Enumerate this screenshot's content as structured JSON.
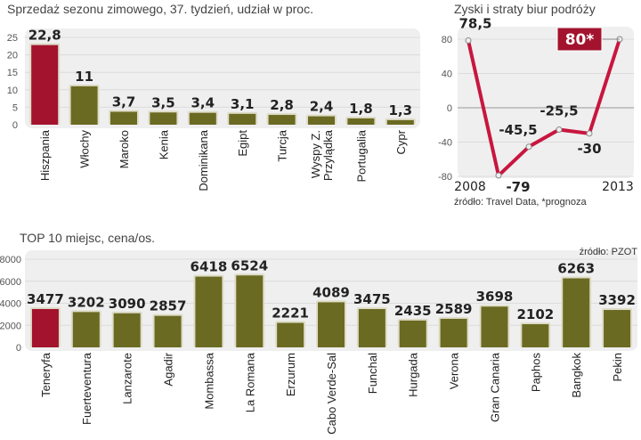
{
  "chart_data": [
    {
      "type": "bar",
      "title": "Sprzedaż sezonu zimowego, 37. tydzień, udział w proc.",
      "categories": [
        "Hiszpania",
        "Włochy",
        "Maroko",
        "Kenia",
        "Dominikana",
        "Egipt",
        "Turcja",
        "Wyspy Z. Przylądka",
        "Portugalia",
        "Cypr"
      ],
      "values": [
        22.8,
        11,
        3.7,
        3.5,
        3.4,
        3.1,
        2.8,
        2.4,
        1.8,
        1.3
      ],
      "value_labels": [
        "22,8",
        "11",
        "3,7",
        "3,5",
        "3,4",
        "3,1",
        "2,8",
        "2,4",
        "1,8",
        "1,3"
      ],
      "highlight_index": 0,
      "yticks": [
        0,
        5,
        10,
        15,
        20,
        25
      ],
      "ylim": [
        0,
        25
      ],
      "grid": true
    },
    {
      "type": "line",
      "title": "Zyski i straty biur podróży",
      "x": [
        2008,
        2009,
        2010,
        2011,
        2012,
        2013
      ],
      "x_tick_labels": [
        "2008",
        "2013"
      ],
      "values": [
        78.5,
        -79,
        -45.5,
        -25.5,
        -30,
        80
      ],
      "value_labels": [
        "78,5",
        "-79",
        "-45,5",
        "-25,5",
        "-30",
        "80*"
      ],
      "highlight_index": 5,
      "yticks": [
        -80,
        -40,
        0,
        40,
        80
      ],
      "ylim": [
        -80,
        80
      ],
      "source": "źródło: Travel Data, *prognoza",
      "grid": true
    },
    {
      "type": "bar",
      "title": "TOP 10 miejsc, cena/os.",
      "source": "źródło: PZOT",
      "categories": [
        "Teneryfa",
        "Fuerteventura",
        "Lanzarote",
        "Agadir",
        "Mombassa",
        "La Romana",
        "Erzurum",
        "Cabo Verde-Sal",
        "Funchal",
        "Hurgada",
        "Verona",
        "Gran Canaria",
        "Paphos",
        "Bangkok",
        "Pekin"
      ],
      "values": [
        3477,
        3202,
        3090,
        2857,
        6418,
        6524,
        2221,
        4089,
        3475,
        2435,
        2589,
        3698,
        2102,
        6263,
        3392
      ],
      "value_labels": [
        "3477",
        "3202",
        "3090",
        "2857",
        "6418",
        "6524",
        "2221",
        "4089",
        "3475",
        "2435",
        "2589",
        "3698",
        "2102",
        "6263",
        "3392"
      ],
      "highlight_index": 0,
      "yticks": [
        0,
        2000,
        4000,
        6000,
        8000
      ],
      "ylim": [
        0,
        8000
      ],
      "grid": true
    }
  ],
  "colors": {
    "highlight": "#a3132d",
    "bar": "#6b6a22",
    "line": "#c8163f",
    "panel": "#efefef",
    "grid": "#dcdcdc"
  }
}
